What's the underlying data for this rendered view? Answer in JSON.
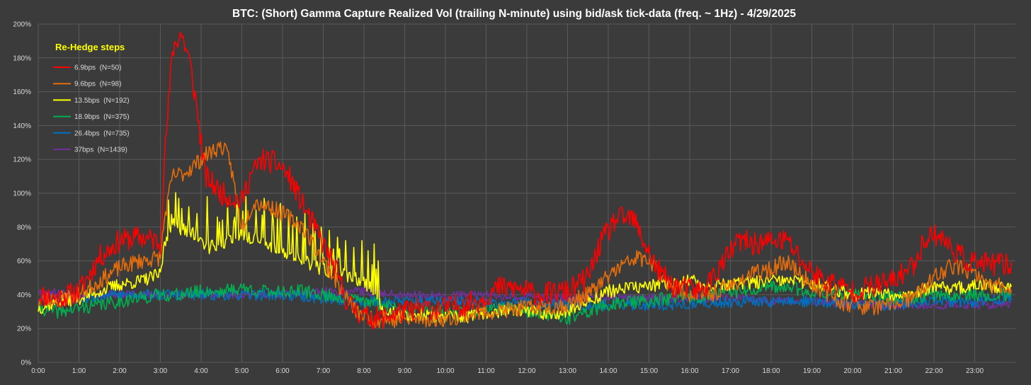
{
  "chart_data": {
    "type": "line",
    "title": "BTC: (Short) Gamma Capture Realized Vol (trailing N-minute) using bid/ask tick-data (freq. ~ 1Hz) - 4/29/2025",
    "xlabel": "",
    "ylabel": "",
    "x_range_hours": [
      0,
      24
    ],
    "ylim": [
      0,
      200
    ],
    "y_ticks": [
      0,
      20,
      40,
      60,
      80,
      100,
      120,
      140,
      160,
      180,
      200
    ],
    "y_tick_labels": [
      "0%",
      "20%",
      "40%",
      "60%",
      "80%",
      "100%",
      "120%",
      "140%",
      "160%",
      "180%",
      "200%"
    ],
    "x_ticks": [
      0,
      1,
      2,
      3,
      4,
      5,
      6,
      7,
      8,
      9,
      10,
      11,
      12,
      13,
      14,
      15,
      16,
      17,
      18,
      19,
      20,
      21,
      22,
      23
    ],
    "x_tick_labels": [
      "0:00",
      "1:00",
      "2:00",
      "3:00",
      "4:00",
      "5:00",
      "6:00",
      "7:00",
      "8:00",
      "9:00",
      "10:00",
      "11:00",
      "12:00",
      "13:00",
      "14:00",
      "15:00",
      "16:00",
      "17:00",
      "18:00",
      "19:00",
      "20:00",
      "21:00",
      "22:00",
      "23:00"
    ],
    "grid": true,
    "legend": {
      "title": "Re-Hedge steps",
      "placement": "top-left"
    },
    "series": [
      {
        "name": "6.9bps  (N=50)",
        "color": "#ff0000",
        "noise": 7,
        "seed": 11,
        "points": [
          [
            0,
            40
          ],
          [
            0.5,
            38
          ],
          [
            1,
            42
          ],
          [
            1.5,
            62
          ],
          [
            2,
            72
          ],
          [
            2.5,
            74
          ],
          [
            2.9,
            72
          ],
          [
            3.0,
            70
          ],
          [
            3.1,
            120
          ],
          [
            3.3,
            185
          ],
          [
            3.5,
            195
          ],
          [
            3.7,
            180
          ],
          [
            3.9,
            150
          ],
          [
            4.1,
            110
          ],
          [
            4.5,
            100
          ],
          [
            5.0,
            95
          ],
          [
            5.2,
            110
          ],
          [
            5.5,
            120
          ],
          [
            5.8,
            118
          ],
          [
            6.0,
            115
          ],
          [
            6.2,
            108
          ],
          [
            6.6,
            88
          ],
          [
            7.0,
            70
          ],
          [
            7.3,
            55
          ],
          [
            7.6,
            35
          ],
          [
            8.0,
            27
          ],
          [
            8.4,
            26
          ],
          [
            8.8,
            29
          ],
          [
            9.5,
            32
          ],
          [
            10.0,
            32
          ],
          [
            10.8,
            36
          ],
          [
            11.3,
            44
          ],
          [
            11.7,
            44
          ],
          [
            12.3,
            40
          ],
          [
            13.0,
            42
          ],
          [
            13.5,
            50
          ],
          [
            13.8,
            70
          ],
          [
            14.2,
            85
          ],
          [
            14.6,
            85
          ],
          [
            14.9,
            70
          ],
          [
            15.2,
            55
          ],
          [
            15.6,
            45
          ],
          [
            16.3,
            42
          ],
          [
            16.8,
            58
          ],
          [
            17.2,
            72
          ],
          [
            17.6,
            70
          ],
          [
            18.1,
            72
          ],
          [
            18.4,
            72
          ],
          [
            18.8,
            58
          ],
          [
            19.2,
            50
          ],
          [
            19.6,
            46
          ],
          [
            20.0,
            42
          ],
          [
            20.5,
            45
          ],
          [
            21.0,
            48
          ],
          [
            21.5,
            58
          ],
          [
            21.8,
            74
          ],
          [
            22.1,
            76
          ],
          [
            22.4,
            68
          ],
          [
            22.8,
            60
          ],
          [
            23.3,
            58
          ],
          [
            23.9,
            58
          ]
        ]
      },
      {
        "name": "9.6bps  (N=98)",
        "color": "#e46c0a",
        "noise": 5,
        "seed": 23,
        "points": [
          [
            0,
            36
          ],
          [
            0.5,
            38
          ],
          [
            1,
            40
          ],
          [
            1.5,
            48
          ],
          [
            2,
            56
          ],
          [
            2.5,
            60
          ],
          [
            3.0,
            62
          ],
          [
            3.1,
            85
          ],
          [
            3.3,
            110
          ],
          [
            3.6,
            112
          ],
          [
            3.9,
            118
          ],
          [
            4.2,
            124
          ],
          [
            4.5,
            128
          ],
          [
            4.7,
            120
          ],
          [
            5.0,
            80
          ],
          [
            5.3,
            95
          ],
          [
            5.7,
            92
          ],
          [
            6.0,
            88
          ],
          [
            6.5,
            80
          ],
          [
            7.0,
            60
          ],
          [
            7.4,
            45
          ],
          [
            7.8,
            30
          ],
          [
            8.3,
            25
          ],
          [
            9.0,
            25
          ],
          [
            10.0,
            26
          ],
          [
            11.0,
            30
          ],
          [
            12.0,
            32
          ],
          [
            13.0,
            34
          ],
          [
            13.6,
            42
          ],
          [
            14.2,
            55
          ],
          [
            14.7,
            62
          ],
          [
            15.0,
            60
          ],
          [
            15.4,
            48
          ],
          [
            16.0,
            40
          ],
          [
            16.5,
            40
          ],
          [
            17.0,
            45
          ],
          [
            17.5,
            52
          ],
          [
            18.0,
            55
          ],
          [
            18.4,
            60
          ],
          [
            18.8,
            50
          ],
          [
            19.3,
            42
          ],
          [
            19.8,
            35
          ],
          [
            20.3,
            33
          ],
          [
            20.8,
            33
          ],
          [
            21.5,
            38
          ],
          [
            22.0,
            50
          ],
          [
            22.4,
            57
          ],
          [
            22.8,
            55
          ],
          [
            23.3,
            46
          ],
          [
            23.9,
            44
          ]
        ]
      },
      {
        "name": "13.5bps  (N=192)",
        "color": "#ffff00",
        "noise": 4,
        "seed": 37,
        "points": [
          [
            0,
            32
          ],
          [
            0.5,
            36
          ],
          [
            1,
            38
          ],
          [
            1.5,
            42
          ],
          [
            2,
            46
          ],
          [
            2.5,
            48
          ],
          [
            3.0,
            52
          ],
          [
            3.1,
            70
          ],
          [
            3.3,
            80
          ],
          [
            3.7,
            78
          ],
          [
            4.2,
            68
          ],
          [
            4.7,
            72
          ],
          [
            5.0,
            75
          ],
          [
            5.5,
            72
          ],
          [
            6.0,
            65
          ],
          [
            6.5,
            60
          ],
          [
            7.0,
            55
          ],
          [
            7.5,
            52
          ],
          [
            8.0,
            48
          ],
          [
            8.5,
            30
          ],
          [
            9.0,
            28
          ],
          [
            9.5,
            28
          ],
          [
            10.0,
            26
          ],
          [
            10.5,
            27
          ],
          [
            11.0,
            29
          ],
          [
            11.5,
            31
          ],
          [
            12.0,
            30
          ],
          [
            12.5,
            29
          ],
          [
            13.0,
            30
          ],
          [
            13.5,
            36
          ],
          [
            14.0,
            42
          ],
          [
            14.5,
            44
          ],
          [
            15.0,
            45
          ],
          [
            15.5,
            47
          ],
          [
            16.0,
            48
          ],
          [
            16.5,
            46
          ],
          [
            17.0,
            46
          ],
          [
            17.5,
            47
          ],
          [
            18.0,
            48
          ],
          [
            18.5,
            48
          ],
          [
            19.0,
            47
          ],
          [
            19.5,
            44
          ],
          [
            20.0,
            40
          ],
          [
            20.5,
            42
          ],
          [
            21.0,
            40
          ],
          [
            21.5,
            42
          ],
          [
            22.0,
            44
          ],
          [
            22.5,
            44
          ],
          [
            23.0,
            45
          ],
          [
            23.5,
            45
          ],
          [
            23.9,
            44
          ]
        ],
        "spikes": [
          [
            3.2,
            96
          ],
          [
            3.45,
            97
          ],
          [
            3.7,
            92
          ],
          [
            3.9,
            88
          ],
          [
            4.15,
            98
          ],
          [
            4.4,
            86
          ],
          [
            4.65,
            94
          ],
          [
            4.9,
            92
          ],
          [
            5.1,
            98
          ],
          [
            5.35,
            90
          ],
          [
            5.55,
            97
          ],
          [
            5.75,
            88
          ],
          [
            5.95,
            94
          ],
          [
            6.15,
            90
          ],
          [
            6.35,
            86
          ],
          [
            6.55,
            88
          ],
          [
            6.75,
            82
          ],
          [
            6.95,
            80
          ],
          [
            7.15,
            78
          ],
          [
            7.35,
            74
          ],
          [
            7.55,
            72
          ],
          [
            7.75,
            68
          ],
          [
            7.95,
            72
          ],
          [
            8.1,
            66
          ],
          [
            8.25,
            70
          ],
          [
            8.35,
            60
          ]
        ]
      },
      {
        "name": "18.9bps  (N=375)",
        "color": "#00b050",
        "noise": 4,
        "seed": 41,
        "points": [
          [
            0,
            32
          ],
          [
            0.5,
            30
          ],
          [
            1,
            32
          ],
          [
            1.5,
            34
          ],
          [
            2,
            36
          ],
          [
            2.5,
            38
          ],
          [
            3.0,
            40
          ],
          [
            3.5,
            40
          ],
          [
            4.0,
            42
          ],
          [
            4.5,
            42
          ],
          [
            5.0,
            44
          ],
          [
            5.5,
            42
          ],
          [
            6.0,
            42
          ],
          [
            6.5,
            42
          ],
          [
            7.0,
            40
          ],
          [
            7.5,
            38
          ],
          [
            8.0,
            36
          ],
          [
            8.5,
            34
          ],
          [
            9.0,
            32
          ],
          [
            9.5,
            30
          ],
          [
            10.0,
            30
          ],
          [
            10.5,
            30
          ],
          [
            11.0,
            32
          ],
          [
            11.5,
            32
          ],
          [
            12.0,
            30
          ],
          [
            12.5,
            28
          ],
          [
            13.0,
            26
          ],
          [
            13.5,
            30
          ],
          [
            14.0,
            34
          ],
          [
            14.5,
            36
          ],
          [
            15.0,
            36
          ],
          [
            15.5,
            38
          ],
          [
            16.0,
            38
          ],
          [
            16.5,
            40
          ],
          [
            17.0,
            42
          ],
          [
            17.5,
            42
          ],
          [
            18.0,
            44
          ],
          [
            18.5,
            44
          ],
          [
            19.0,
            42
          ],
          [
            19.5,
            42
          ],
          [
            20.0,
            40
          ],
          [
            20.5,
            40
          ],
          [
            21.0,
            38
          ],
          [
            21.5,
            38
          ],
          [
            22.0,
            40
          ],
          [
            22.5,
            40
          ],
          [
            23.0,
            40
          ],
          [
            23.5,
            40
          ],
          [
            23.9,
            40
          ]
        ]
      },
      {
        "name": "26.4bps  (N=735)",
        "color": "#0070c0",
        "noise": 3.5,
        "seed": 53,
        "points": [
          [
            0,
            38
          ],
          [
            1,
            38
          ],
          [
            2,
            40
          ],
          [
            3,
            40
          ],
          [
            4,
            40
          ],
          [
            5,
            40
          ],
          [
            6,
            40
          ],
          [
            7,
            38
          ],
          [
            8,
            36
          ],
          [
            9,
            36
          ],
          [
            10,
            36
          ],
          [
            11,
            35
          ],
          [
            12,
            35
          ],
          [
            13,
            34
          ],
          [
            14,
            34
          ],
          [
            15,
            34
          ],
          [
            16,
            34
          ],
          [
            17,
            36
          ],
          [
            18,
            36
          ],
          [
            19,
            36
          ],
          [
            20,
            34
          ],
          [
            21,
            34
          ],
          [
            22,
            36
          ],
          [
            23,
            36
          ],
          [
            23.9,
            38
          ]
        ]
      },
      {
        "name": "37bps  (N=1439)",
        "color": "#7030a0",
        "noise": 2.5,
        "seed": 67,
        "points": [
          [
            0,
            42
          ],
          [
            1,
            40
          ],
          [
            2,
            40
          ],
          [
            3,
            40
          ],
          [
            4,
            40
          ],
          [
            5,
            40
          ],
          [
            6,
            40
          ],
          [
            7,
            42
          ],
          [
            8,
            42
          ],
          [
            9,
            40
          ],
          [
            10,
            40
          ],
          [
            11,
            40
          ],
          [
            12,
            39
          ],
          [
            13,
            38
          ],
          [
            14,
            38
          ],
          [
            15,
            38
          ],
          [
            16,
            38
          ],
          [
            17,
            38
          ],
          [
            18,
            36
          ],
          [
            19,
            36
          ],
          [
            20,
            34
          ],
          [
            21,
            34
          ],
          [
            22,
            34
          ],
          [
            23,
            34
          ],
          [
            23.9,
            34
          ]
        ]
      }
    ]
  }
}
